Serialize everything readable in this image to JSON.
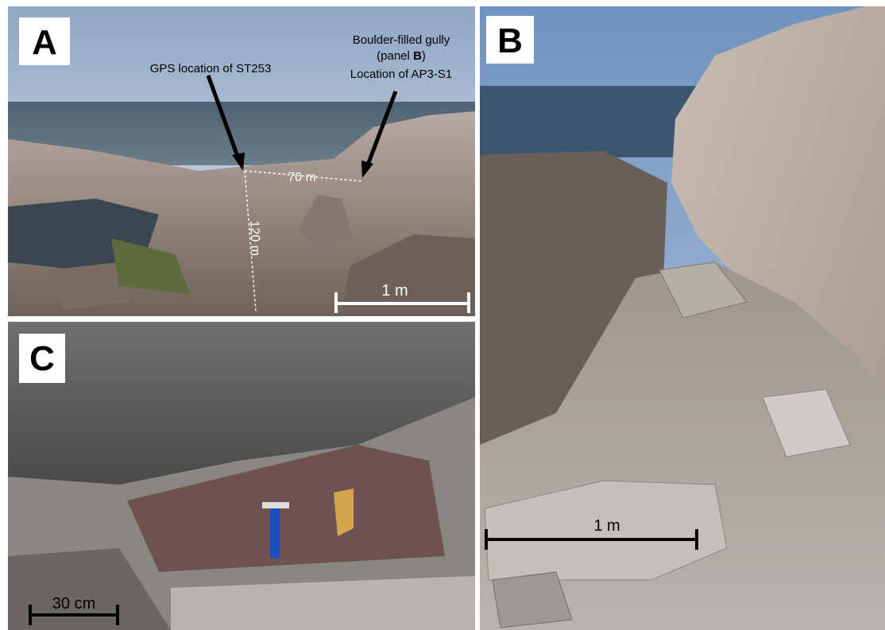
{
  "panels": [
    {
      "label": "A",
      "gps_note": "GPS location of ST253",
      "gully_note": {
        "line1": "Boulder-filled gully",
        "line2_before": "(panel ",
        "line2_ref": "B",
        "line2_after": ")",
        "line3": "Location of AP3-S1"
      },
      "distances": [
        "70 m",
        "120 m"
      ],
      "scale_bar": "1 m"
    },
    {
      "label": "B",
      "scale_bar": "1 m"
    },
    {
      "label": "C",
      "scale_bar": "30 cm"
    }
  ]
}
